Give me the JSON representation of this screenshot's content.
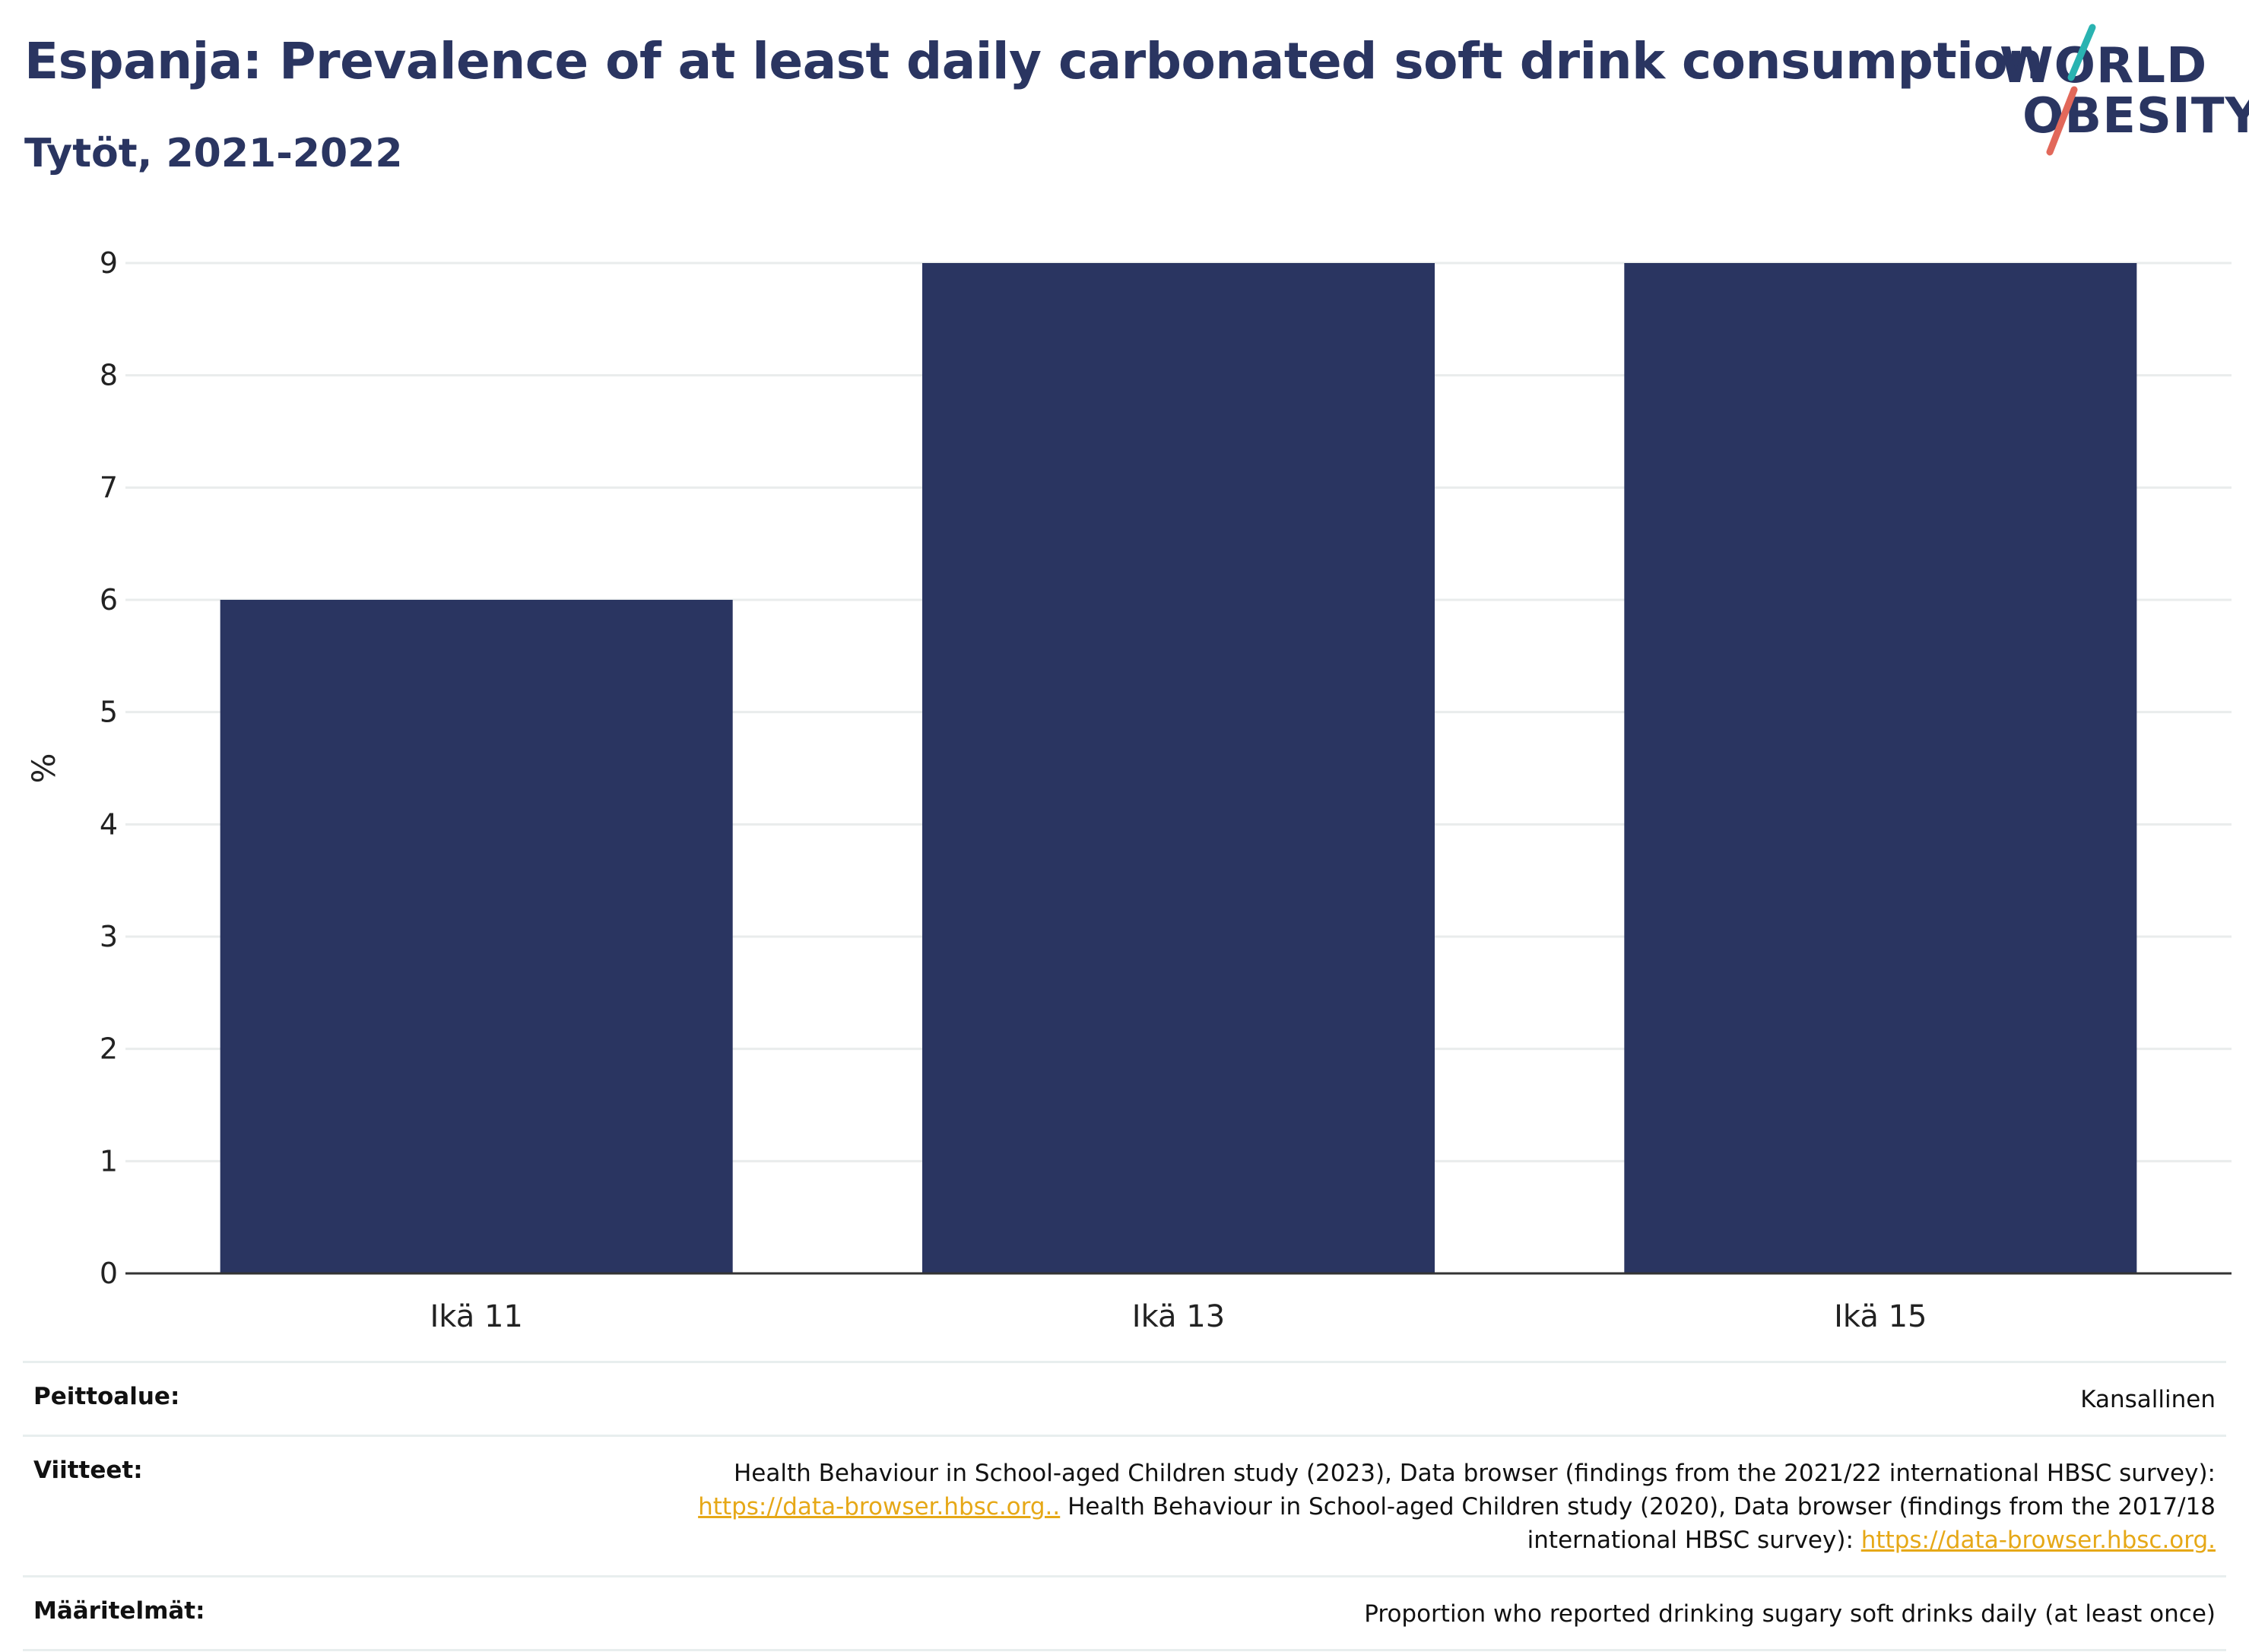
{
  "header": {
    "title": "Espanja: Prevalence of at least daily carbonated soft drink consumption",
    "subtitle": "Tytöt, 2021-2022"
  },
  "logo": {
    "line1": "WORLD",
    "line2": "OBESITY",
    "accent_colors": [
      "#2ab3b1",
      "#e2685a"
    ]
  },
  "chart_data": {
    "type": "bar",
    "categories": [
      "Ikä 11",
      "Ikä 13",
      "Ikä 15"
    ],
    "values": [
      6,
      9,
      9
    ],
    "ylabel": "%",
    "xlabel": "",
    "ylim": [
      0,
      9
    ],
    "yticks": [
      0,
      1,
      2,
      3,
      4,
      5,
      6,
      7,
      8,
      9
    ],
    "bar_color": "#2a3561",
    "grid": true
  },
  "meta": {
    "coverage_label": "Peittoalue:",
    "coverage_value": "Kansallinen",
    "references_label": "Viitteet:",
    "references_text1": "Health Behaviour in School-aged Children study (2023), Data browser (findings from the 2021/22 international HBSC survey):",
    "references_link1": "https://data-browser.hbsc.org..",
    "references_text2": "Health Behaviour in School-aged Children study (2020), Data browser (findings from the 2017/18 international HBSC survey):",
    "references_link2": "https://data-browser.hbsc.org.",
    "definitions_label": "Määritelmät:",
    "definitions_value": "Proportion who reported drinking sugary soft drinks daily (at least once)"
  }
}
